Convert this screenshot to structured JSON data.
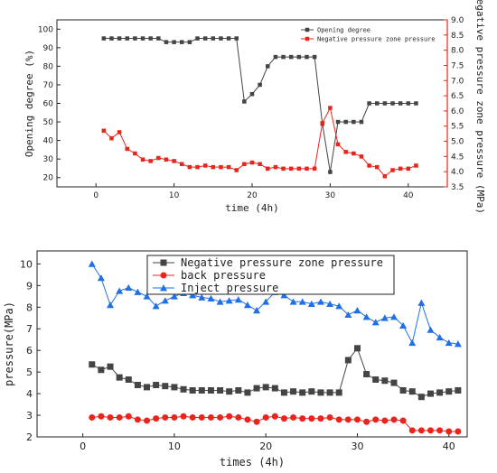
{
  "chart_data": [
    {
      "type": "line",
      "xlabel": "time (4h)",
      "ylabel": "Opening degree (%)",
      "ylabel_right": "Negative pressure zone pressure (MPa)",
      "xlim": [
        -5,
        45
      ],
      "ylim": [
        15,
        105
      ],
      "ylim_right": [
        3.5,
        9.0
      ],
      "xticks": [
        0,
        10,
        20,
        30,
        40
      ],
      "yticks": [
        20,
        30,
        40,
        50,
        60,
        70,
        80,
        90,
        100
      ],
      "yticks_right": [
        3.5,
        4.0,
        4.5,
        5.0,
        5.5,
        6.0,
        6.5,
        7.0,
        7.5,
        8.0,
        8.5,
        9.0
      ],
      "legend_position": "top-right",
      "colors": {
        "left_axis": "#222222",
        "right_axis": "#e8241c"
      },
      "series": [
        {
          "name": "Opening degree",
          "axis": "left",
          "color": "#444444",
          "marker": "square",
          "x": [
            1,
            2,
            3,
            4,
            5,
            6,
            7,
            8,
            9,
            10,
            11,
            12,
            13,
            14,
            15,
            16,
            17,
            18,
            19,
            20,
            21,
            22,
            23,
            24,
            25,
            26,
            27,
            28,
            29,
            30,
            31,
            32,
            33,
            34,
            35,
            36,
            37,
            38,
            39,
            40,
            41
          ],
          "values": [
            95,
            95,
            95,
            95,
            95,
            95,
            95,
            95,
            93,
            93,
            93,
            93,
            95,
            95,
            95,
            95,
            95,
            95,
            61,
            65,
            70,
            80,
            85,
            85,
            85,
            85,
            85,
            85,
            49,
            23,
            50,
            50,
            50,
            50,
            60,
            60,
            60,
            60,
            60,
            60,
            60
          ]
        },
        {
          "name": "Negative pressure zone pressure",
          "axis": "right",
          "color": "#e8241c",
          "marker": "square",
          "x": [
            1,
            2,
            3,
            4,
            5,
            6,
            7,
            8,
            9,
            10,
            11,
            12,
            13,
            14,
            15,
            16,
            17,
            18,
            19,
            20,
            21,
            22,
            23,
            24,
            25,
            26,
            27,
            28,
            29,
            30,
            31,
            32,
            33,
            34,
            35,
            36,
            37,
            38,
            39,
            40,
            41
          ],
          "values": [
            5.35,
            5.1,
            5.3,
            4.75,
            4.6,
            4.4,
            4.35,
            4.45,
            4.4,
            4.35,
            4.25,
            4.15,
            4.15,
            4.2,
            4.15,
            4.15,
            4.15,
            4.05,
            4.25,
            4.3,
            4.25,
            4.1,
            4.15,
            4.1,
            4.1,
            4.1,
            4.1,
            4.1,
            5.6,
            6.1,
            4.9,
            4.65,
            4.6,
            4.5,
            4.2,
            4.15,
            3.85,
            4.05,
            4.1,
            4.1,
            4.2
          ]
        }
      ]
    },
    {
      "type": "line",
      "xlabel": "times (4h)",
      "ylabel": "pressure(MPa)",
      "xlim": [
        -5,
        42
      ],
      "ylim": [
        2,
        10.6
      ],
      "xticks": [
        0,
        10,
        20,
        30,
        40
      ],
      "yticks": [
        2,
        3,
        4,
        5,
        6,
        7,
        8,
        9,
        10
      ],
      "legend_position": "top-right",
      "series": [
        {
          "name": "Negative pressure zone pressure",
          "color": "#444444",
          "marker": "square",
          "x": [
            1,
            2,
            3,
            4,
            5,
            6,
            7,
            8,
            9,
            10,
            11,
            12,
            13,
            14,
            15,
            16,
            17,
            18,
            19,
            20,
            21,
            22,
            23,
            24,
            25,
            26,
            27,
            28,
            29,
            30,
            31,
            32,
            33,
            34,
            35,
            36,
            37,
            38,
            39,
            40,
            41
          ],
          "values": [
            5.35,
            5.1,
            5.25,
            4.75,
            4.65,
            4.4,
            4.3,
            4.4,
            4.35,
            4.3,
            4.2,
            4.15,
            4.15,
            4.15,
            4.15,
            4.1,
            4.15,
            4.05,
            4.25,
            4.3,
            4.25,
            4.05,
            4.1,
            4.05,
            4.1,
            4.05,
            4.05,
            4.05,
            5.55,
            6.1,
            4.9,
            4.65,
            4.6,
            4.5,
            4.15,
            4.1,
            3.85,
            4.0,
            4.05,
            4.1,
            4.15
          ]
        },
        {
          "name": "back pressure",
          "color": "#e8241c",
          "marker": "circle",
          "x": [
            1,
            2,
            3,
            4,
            5,
            6,
            7,
            8,
            9,
            10,
            11,
            12,
            13,
            14,
            15,
            16,
            17,
            18,
            19,
            20,
            21,
            22,
            23,
            24,
            25,
            26,
            27,
            28,
            29,
            30,
            31,
            32,
            33,
            34,
            35,
            36,
            37,
            38,
            39,
            40,
            41
          ],
          "values": [
            2.9,
            2.95,
            2.9,
            2.9,
            2.95,
            2.8,
            2.75,
            2.85,
            2.9,
            2.9,
            2.95,
            2.9,
            2.9,
            2.9,
            2.9,
            2.95,
            2.9,
            2.8,
            2.7,
            2.9,
            2.95,
            2.85,
            2.9,
            2.85,
            2.85,
            2.85,
            2.9,
            2.8,
            2.8,
            2.8,
            2.7,
            2.8,
            2.75,
            2.8,
            2.75,
            2.3,
            2.3,
            2.3,
            2.3,
            2.25,
            2.25
          ]
        },
        {
          "name": "Inject pressure",
          "color": "#1f6fe8",
          "marker": "triangle",
          "x": [
            1,
            2,
            3,
            4,
            5,
            6,
            7,
            8,
            9,
            10,
            11,
            12,
            13,
            14,
            15,
            16,
            17,
            18,
            19,
            20,
            21,
            22,
            23,
            24,
            25,
            26,
            27,
            28,
            29,
            30,
            31,
            32,
            33,
            34,
            35,
            36,
            37,
            38,
            39,
            40,
            41
          ],
          "values": [
            10.0,
            9.35,
            8.1,
            8.75,
            8.9,
            8.7,
            8.5,
            8.05,
            8.3,
            8.5,
            8.65,
            8.55,
            8.45,
            8.4,
            8.25,
            8.3,
            8.35,
            8.1,
            7.85,
            8.25,
            8.7,
            8.55,
            8.25,
            8.25,
            8.15,
            8.25,
            8.15,
            8.05,
            7.65,
            7.85,
            7.55,
            7.3,
            7.5,
            7.55,
            7.15,
            6.35,
            8.2,
            6.95,
            6.6,
            6.35,
            6.3
          ]
        }
      ]
    }
  ]
}
